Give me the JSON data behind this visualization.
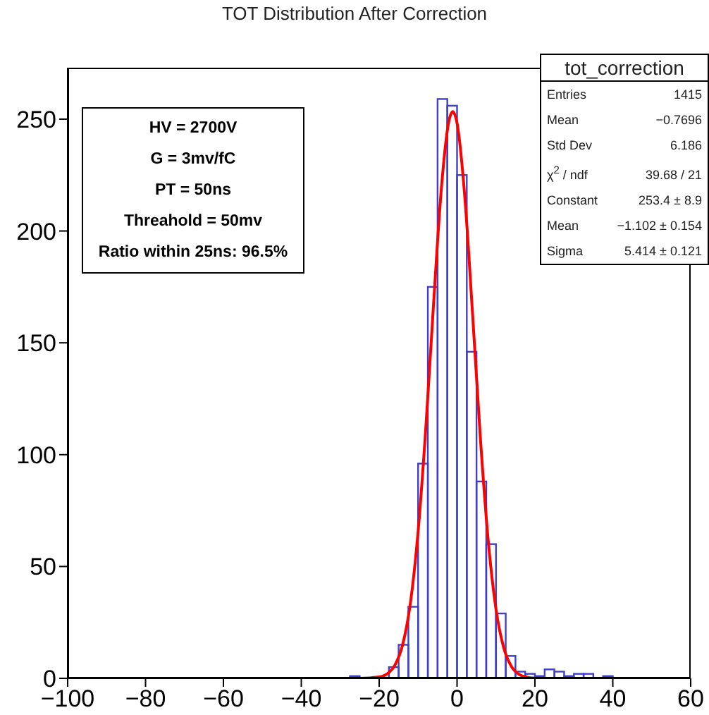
{
  "chart_data": {
    "type": "histogram",
    "title": "TOT Distribution After Correction",
    "bins": [
      -30,
      -27.5,
      -25,
      -22.5,
      -20,
      -17.5,
      -15,
      -12.5,
      -10,
      -7.5,
      -5,
      -2.5,
      0,
      2.5,
      5,
      7.5,
      10,
      12.5,
      15,
      17.5,
      20,
      22.5,
      25,
      27.5,
      30,
      32.5,
      35,
      37.5,
      40
    ],
    "values": [
      0,
      1,
      0,
      0,
      null,
      5,
      15,
      32,
      96,
      175,
      259,
      256,
      225,
      146,
      88,
      60,
      29,
      10,
      3,
      2,
      1,
      4,
      3,
      1,
      2,
      2,
      0,
      1
    ],
    "color": "#3f3fcc",
    "series": [
      {
        "type": "line",
        "color": "#ff0000",
        "x": [
          -100,
          -25,
          -20,
          -18,
          -16,
          -14,
          -12,
          -10,
          -8,
          -6,
          -4,
          -2,
          -1.1,
          0,
          2,
          4,
          6,
          8,
          10,
          12,
          14,
          16,
          18,
          20
        ],
        "values": [
          0,
          0,
          0.6,
          1.9,
          5.8,
          14.8,
          33.4,
          65.7,
          112.5,
          168.3,
          219.6,
          249.9,
          253.4,
          248.2,
          215.0,
          162.5,
          107.2,
          61.7,
          31.0,
          13.6,
          5.2,
          1.7,
          0.5,
          0.1
        ]
      }
    ],
    "xlim": [
      -100,
      60
    ],
    "xticks": [
      -100,
      -80,
      -60,
      -40,
      -20,
      0,
      20,
      40,
      60
    ],
    "ylim": [
      0,
      273
    ],
    "yticks": [
      0,
      50,
      100,
      150,
      200,
      250
    ],
    "grid": false,
    "legend": false,
    "annotations": [
      "HV = 2700V",
      "G = 3mv/fC",
      "PT = 50ns",
      "Threahold = 50mv",
      "Ratio within 25ns: 96.5%",
      "tot_correction",
      "Entries",
      "1415",
      "Mean",
      "−0.7696",
      "Std Dev",
      "6.186",
      "χ$^{2}$ / ndf",
      "39.68 / 21",
      "Constant",
      "253.4 ± 8.9",
      "Mean",
      "−1.102 ± 0.154",
      "Sigma",
      "5.414 ± 0.121"
    ]
  }
}
